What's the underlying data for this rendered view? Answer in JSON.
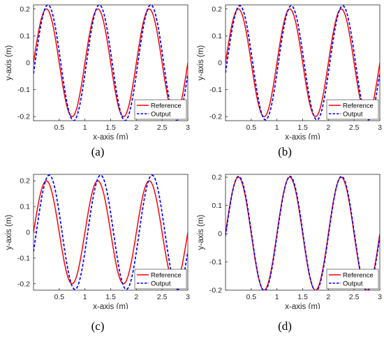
{
  "chart_data": [
    {
      "type": "line",
      "panel_label": "a",
      "xlabel": "x-axis (m)",
      "ylabel": "y-axis (m)",
      "xlim": [
        0,
        3
      ],
      "ylim": [
        -0.215,
        0.215
      ],
      "xticks": [
        "0.5",
        "1",
        "1.5",
        "2",
        "2.5",
        "3"
      ],
      "yticks": [
        "-0.2",
        "-0.1",
        "0",
        "0.1",
        "0.2"
      ],
      "grid": false,
      "legend_position": "bottom-right",
      "series": [
        {
          "name": "Reference",
          "color": "#ff0000",
          "style": "solid",
          "amplitude": 0.2,
          "wavelength": 1.0,
          "phase_shift": 0.0
        },
        {
          "name": "Output",
          "color": "#0000ff",
          "style": "dashed",
          "amplitude": 0.215,
          "wavelength": 1.0,
          "phase_shift": 0.03
        }
      ]
    },
    {
      "type": "line",
      "panel_label": "b",
      "xlabel": "x-axis (m)",
      "ylabel": "y-axis (m)",
      "xlim": [
        0,
        3
      ],
      "ylim": [
        -0.215,
        0.215
      ],
      "xticks": [
        "0.5",
        "1",
        "1.5",
        "2",
        "2.5",
        "3"
      ],
      "yticks": [
        "-0.2",
        "-0.1",
        "0",
        "0.1",
        "0.2"
      ],
      "grid": false,
      "legend_position": "bottom-right",
      "series": [
        {
          "name": "Reference",
          "color": "#ff0000",
          "style": "solid",
          "amplitude": 0.2,
          "wavelength": 1.0,
          "phase_shift": 0.0
        },
        {
          "name": "Output",
          "color": "#0000ff",
          "style": "dashed",
          "amplitude": 0.212,
          "wavelength": 1.0,
          "phase_shift": 0.028
        }
      ]
    },
    {
      "type": "line",
      "panel_label": "c",
      "xlabel": "x-axis (m)",
      "ylabel": "y-axis (m)",
      "xlim": [
        0,
        3
      ],
      "ylim": [
        -0.225,
        0.225
      ],
      "xticks": [
        "0.5",
        "1",
        "1.5",
        "2",
        "2.5",
        "3"
      ],
      "yticks": [
        "-0.2",
        "-0.1",
        "0",
        "0.1",
        "0.2"
      ],
      "grid": false,
      "legend_position": "bottom-right",
      "series": [
        {
          "name": "Reference",
          "color": "#ff0000",
          "style": "solid",
          "amplitude": 0.2,
          "wavelength": 1.0,
          "phase_shift": 0.0
        },
        {
          "name": "Output",
          "color": "#0000ff",
          "style": "dashed",
          "amplitude": 0.222,
          "wavelength": 1.0,
          "phase_shift": 0.055
        }
      ]
    },
    {
      "type": "line",
      "panel_label": "d",
      "xlabel": "x-axis (m)",
      "ylabel": "y-axis (m)",
      "xlim": [
        0,
        3
      ],
      "ylim": [
        -0.2,
        0.21
      ],
      "xticks": [
        "0.5",
        "1",
        "1.5",
        "2",
        "2.5",
        "3"
      ],
      "yticks": [
        "-0.2",
        "-0.1",
        "0",
        "0.1",
        "0.2"
      ],
      "grid": false,
      "legend_position": "bottom-right",
      "series": [
        {
          "name": "Reference",
          "color": "#ff0000",
          "style": "solid",
          "amplitude": 0.2,
          "wavelength": 1.0,
          "phase_shift": 0.0
        },
        {
          "name": "Output",
          "color": "#0000ff",
          "style": "dashed",
          "amplitude": 0.203,
          "wavelength": 1.0,
          "phase_shift": 0.006
        }
      ]
    }
  ],
  "captions": [
    "(a)",
    "(b)",
    "(c)",
    "(d)"
  ]
}
